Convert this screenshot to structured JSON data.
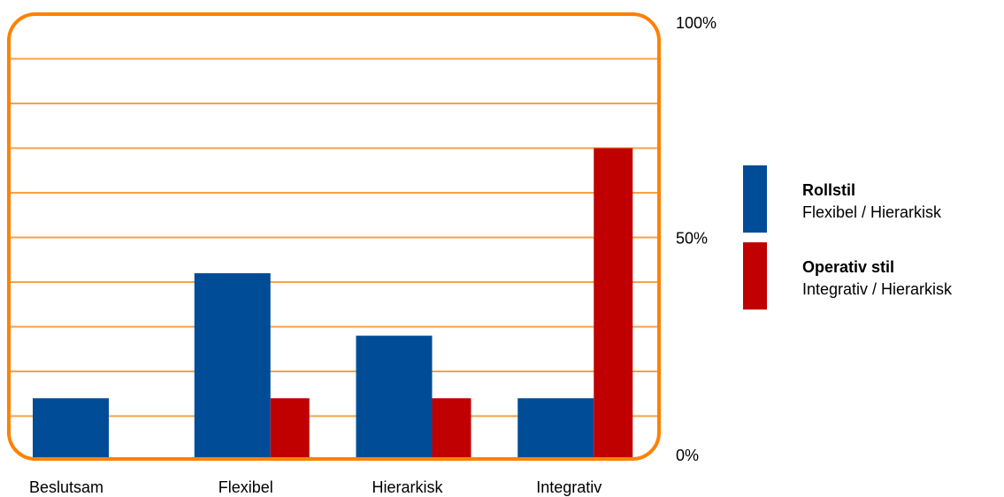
{
  "chart_data": {
    "type": "bar",
    "categories": [
      "Beslutsam",
      "Flexibel",
      "Hierarkisk",
      "Integrativ"
    ],
    "series": [
      {
        "name": "Rollstil",
        "subtitle": "Flexibel / Hierarkisk",
        "color": "#004C97",
        "values": [
          14,
          42,
          28,
          14
        ]
      },
      {
        "name": "Operativ stil",
        "subtitle": "Integrativ / Hierarkisk",
        "color": "#C00000",
        "values": [
          0,
          14,
          14,
          70
        ]
      }
    ],
    "y_tick_labels": [
      "100%",
      "50%",
      "0%"
    ],
    "y_tick_values": [
      100,
      50,
      0
    ],
    "ylim": [
      0,
      100
    ],
    "grid": true,
    "grid_color": "#F7A14B",
    "frame_color": "#FF8100",
    "legend_position": "right"
  }
}
